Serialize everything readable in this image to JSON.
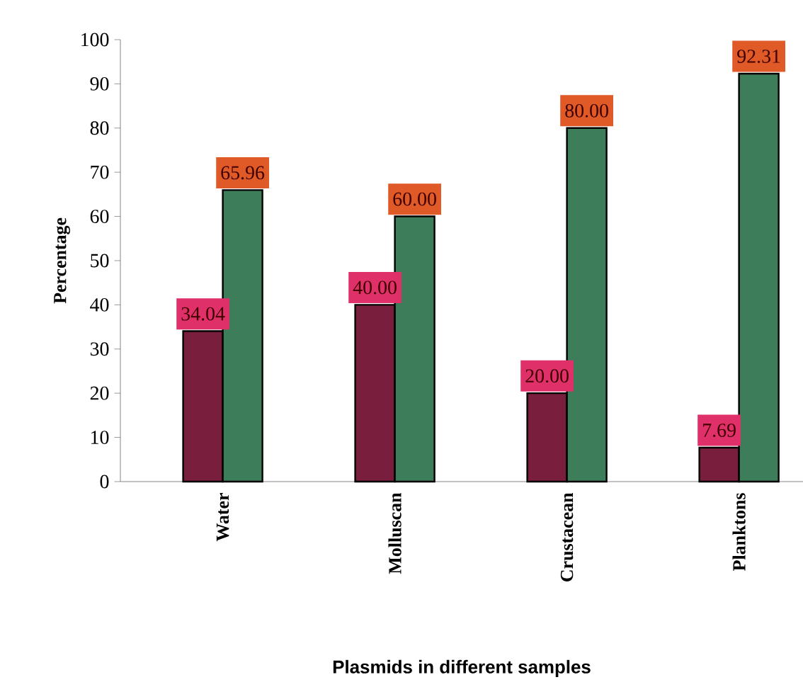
{
  "chart_data": {
    "type": "bar",
    "xlabel": "Plasmids in different samples",
    "ylabel": "Percentage",
    "categories": [
      "Water",
      "Molluscan",
      "Crustacean",
      "Planktons"
    ],
    "series": [
      {
        "color": "#7a1e3e",
        "values": [
          34.04,
          40.0,
          20.0,
          7.69
        ],
        "value_labels": [
          "34.04",
          "40.00",
          "20.00",
          "7.69"
        ]
      },
      {
        "color": "#3e7d5a",
        "values": [
          65.96,
          60.0,
          80.0,
          92.31
        ],
        "value_labels": [
          "65.96",
          "60.00",
          "80.00",
          "92.31"
        ]
      }
    ],
    "ylim": [
      0,
      100
    ],
    "yticks": [
      0,
      10,
      20,
      30,
      40,
      50,
      60,
      70,
      80,
      90,
      100
    ]
  }
}
